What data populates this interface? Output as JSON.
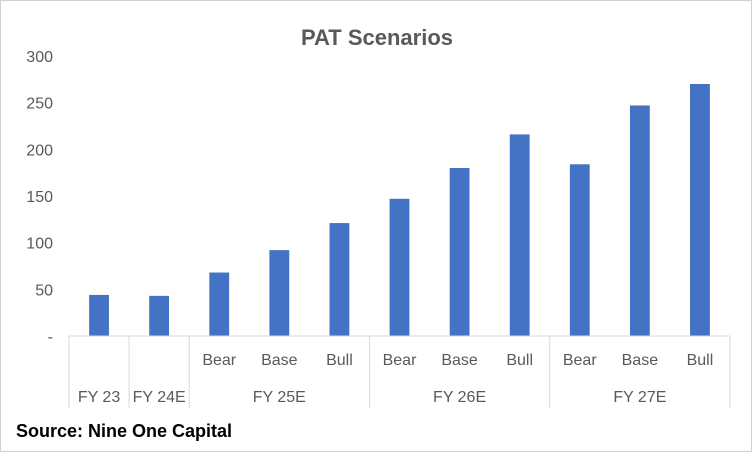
{
  "chart_data": {
    "type": "bar",
    "title": "PAT Scenarios",
    "source": "Source: Nine One Capital",
    "bar_color": "#4472C4",
    "ylim": [
      0,
      300
    ],
    "y_ticks": [
      {
        "value": 0,
        "label": "-"
      },
      {
        "value": 50,
        "label": "50"
      },
      {
        "value": 100,
        "label": "100"
      },
      {
        "value": 150,
        "label": "150"
      },
      {
        "value": 200,
        "label": "200"
      },
      {
        "value": 250,
        "label": "250"
      },
      {
        "value": 300,
        "label": "300"
      }
    ],
    "grid": false,
    "groups": [
      {
        "label": "FY 23",
        "bars": [
          {
            "label": "",
            "value": 44
          }
        ]
      },
      {
        "label": "FY 24E",
        "bars": [
          {
            "label": "",
            "value": 43
          }
        ]
      },
      {
        "label": "FY 25E",
        "bars": [
          {
            "label": "Bear",
            "value": 68
          },
          {
            "label": "Base",
            "value": 92
          },
          {
            "label": "Bull",
            "value": 121
          }
        ]
      },
      {
        "label": "FY 26E",
        "bars": [
          {
            "label": "Bear",
            "value": 147
          },
          {
            "label": "Base",
            "value": 180
          },
          {
            "label": "Bull",
            "value": 216
          }
        ]
      },
      {
        "label": "FY 27E",
        "bars": [
          {
            "label": "Bear",
            "value": 184
          },
          {
            "label": "Base",
            "value": 247
          },
          {
            "label": "Bull",
            "value": 270
          }
        ]
      }
    ]
  }
}
